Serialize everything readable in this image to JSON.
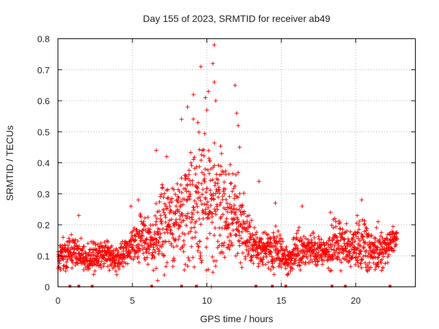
{
  "chart_data": {
    "type": "scatter",
    "title": "Day 155 of 2023, SRMTID for receiver ab49",
    "xlabel": "GPS time / hours",
    "ylabel": "SRMTID / TECUs",
    "xlim": [
      0,
      24
    ],
    "ylim": [
      0,
      0.8
    ],
    "xticks": [
      0,
      5,
      10,
      15,
      20
    ],
    "yticks": [
      0,
      0.1,
      0.2,
      0.3,
      0.4,
      0.5,
      0.6,
      0.7,
      0.8
    ],
    "grid": true,
    "marker": "+",
    "color": "#ff0000",
    "envelope": {
      "hours": [
        0,
        0.5,
        1,
        1.5,
        2,
        2.5,
        3,
        3.5,
        4,
        4.5,
        5,
        5.5,
        6,
        6.5,
        7,
        7.5,
        8,
        8.5,
        9,
        9.5,
        10,
        10.5,
        11,
        11.5,
        12,
        12.5,
        13,
        13.5,
        14,
        14.5,
        15,
        15.5,
        16,
        16.5,
        17,
        17.5,
        18,
        18.5,
        19,
        19.5,
        20,
        20.5,
        21,
        21.5,
        22,
        22.5,
        22.8
      ],
      "median": [
        0.1,
        0.11,
        0.12,
        0.1,
        0.09,
        0.1,
        0.11,
        0.1,
        0.09,
        0.11,
        0.14,
        0.16,
        0.15,
        0.14,
        0.22,
        0.2,
        0.21,
        0.24,
        0.26,
        0.3,
        0.32,
        0.27,
        0.24,
        0.22,
        0.22,
        0.17,
        0.14,
        0.13,
        0.12,
        0.12,
        0.11,
        0.08,
        0.11,
        0.13,
        0.12,
        0.12,
        0.11,
        0.14,
        0.14,
        0.12,
        0.13,
        0.15,
        0.12,
        0.11,
        0.12,
        0.15,
        0.16
      ],
      "spread": [
        0.03,
        0.04,
        0.04,
        0.03,
        0.03,
        0.03,
        0.03,
        0.03,
        0.03,
        0.03,
        0.04,
        0.05,
        0.05,
        0.05,
        0.09,
        0.09,
        0.08,
        0.11,
        0.14,
        0.16,
        0.18,
        0.14,
        0.12,
        0.1,
        0.09,
        0.07,
        0.05,
        0.04,
        0.03,
        0.04,
        0.04,
        0.03,
        0.04,
        0.04,
        0.04,
        0.04,
        0.03,
        0.05,
        0.05,
        0.04,
        0.05,
        0.06,
        0.05,
        0.04,
        0.04,
        0.03,
        0.03
      ]
    },
    "points": [
      {
        "x": 9.6,
        "y": 0.71
      },
      {
        "x": 10.5,
        "y": 0.78
      },
      {
        "x": 10.4,
        "y": 0.72
      },
      {
        "x": 10.1,
        "y": 0.63
      },
      {
        "x": 10.5,
        "y": 0.66
      },
      {
        "x": 11.9,
        "y": 0.65
      },
      {
        "x": 8.7,
        "y": 0.58
      },
      {
        "x": 9.1,
        "y": 0.62
      },
      {
        "x": 9.9,
        "y": 0.61
      },
      {
        "x": 10.6,
        "y": 0.6
      },
      {
        "x": 12.0,
        "y": 0.56
      },
      {
        "x": 12.1,
        "y": 0.52
      },
      {
        "x": 10.0,
        "y": 0.57
      },
      {
        "x": 8.3,
        "y": 0.54
      },
      {
        "x": 9.4,
        "y": 0.53
      },
      {
        "x": 6.6,
        "y": 0.44
      },
      {
        "x": 7.3,
        "y": 0.42
      },
      {
        "x": 12.2,
        "y": 0.45
      },
      {
        "x": 13.5,
        "y": 0.34
      },
      {
        "x": 5.4,
        "y": 0.28
      },
      {
        "x": 1.4,
        "y": 0.23
      },
      {
        "x": 4.9,
        "y": 0.26
      },
      {
        "x": 16.4,
        "y": 0.26
      },
      {
        "x": 20.4,
        "y": 0.28
      },
      {
        "x": 20.1,
        "y": 0.23
      },
      {
        "x": 18.3,
        "y": 0.24
      },
      {
        "x": 15.3,
        "y": 0.06
      },
      {
        "x": 15.4,
        "y": 0.04
      },
      {
        "x": 6.7,
        "y": 0.02
      },
      {
        "x": 6.6,
        "y": 0.06
      },
      {
        "x": 10.3,
        "y": 0.0
      },
      {
        "x": 2.4,
        "y": 0.04
      },
      {
        "x": 20.8,
        "y": 0.05
      },
      {
        "x": 12.0,
        "y": 0.25
      },
      {
        "x": 14.6,
        "y": 0.27
      },
      {
        "x": 21.5,
        "y": 0.21
      }
    ],
    "x_markers": [
      0.8,
      1.4,
      2.3,
      6.3,
      8.3,
      9.3,
      13.3,
      14.4,
      15.3,
      18.4,
      19.3,
      22.3
    ]
  }
}
